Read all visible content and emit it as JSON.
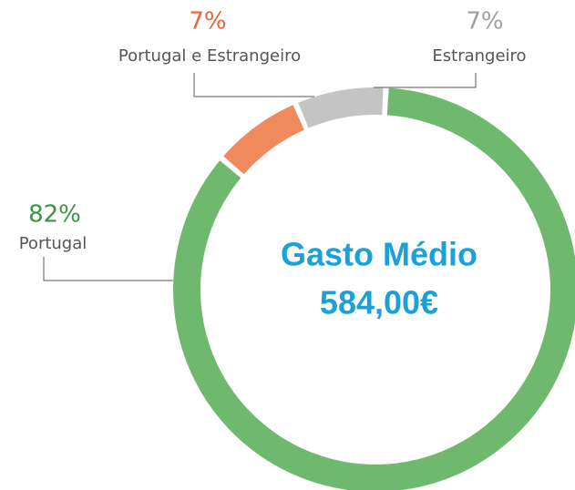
{
  "chart_data": {
    "type": "pie",
    "donut": true,
    "categories": [
      "Portugal",
      "Portugal e Estrangeiro",
      "Estrangeiro"
    ],
    "values": [
      82,
      7,
      7
    ],
    "value_labels": [
      "82%",
      "7%",
      "7%"
    ],
    "colors": [
      "#6fb96f",
      "#f08a5d",
      "#c4c4c4"
    ],
    "label_colors": [
      "#3a9440",
      "#e8643c",
      "#a0a0a0"
    ],
    "center_title": "Gasto Médio",
    "center_value": "584,00€"
  }
}
